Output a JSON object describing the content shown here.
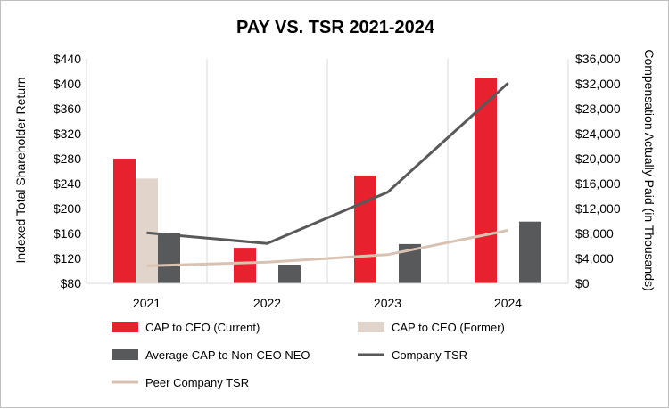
{
  "chart_data": {
    "type": "bar",
    "title": "PAY VS. TSR 2021-2024",
    "categories": [
      "2021",
      "2022",
      "2023",
      "2024"
    ],
    "y_left": {
      "label": "Indexed Total Shareholder Return",
      "range": [
        80,
        440
      ],
      "ticks": [
        "$80",
        "$120",
        "$160",
        "$200",
        "$240",
        "$280",
        "$320",
        "$360",
        "$400",
        "$440"
      ]
    },
    "y_right": {
      "label": "Compensation Actually Paid (in Thousands)",
      "range": [
        0,
        36000
      ],
      "ticks": [
        "$0",
        "$4,000",
        "$8,000",
        "$12,000",
        "$16,000",
        "$20,000",
        "$24,000",
        "$28,000",
        "$32,000",
        "$36,000"
      ]
    },
    "bar_series": [
      {
        "name": "CAP to CEO (Current)",
        "axis": "right",
        "color": "#e8212f",
        "values": [
          20000,
          5700,
          17300,
          33000
        ]
      },
      {
        "name": "CAP to CEO (Former)",
        "axis": "right",
        "color": "#e1d5cb",
        "values": [
          16800,
          null,
          null,
          null
        ]
      },
      {
        "name": "Average CAP to Non-CEO NEO",
        "axis": "right",
        "color": "#58595b",
        "values": [
          8000,
          3000,
          6300,
          9900
        ]
      }
    ],
    "line_series": [
      {
        "name": "Company TSR",
        "axis": "left",
        "color": "#58595b",
        "values": [
          161,
          144,
          226,
          401
        ]
      },
      {
        "name": "Peer Company TSR",
        "axis": "left",
        "color": "#d8c3b3",
        "values": [
          108,
          114,
          126,
          165
        ]
      }
    ],
    "legend_position": "bottom",
    "grid": "vertical"
  }
}
